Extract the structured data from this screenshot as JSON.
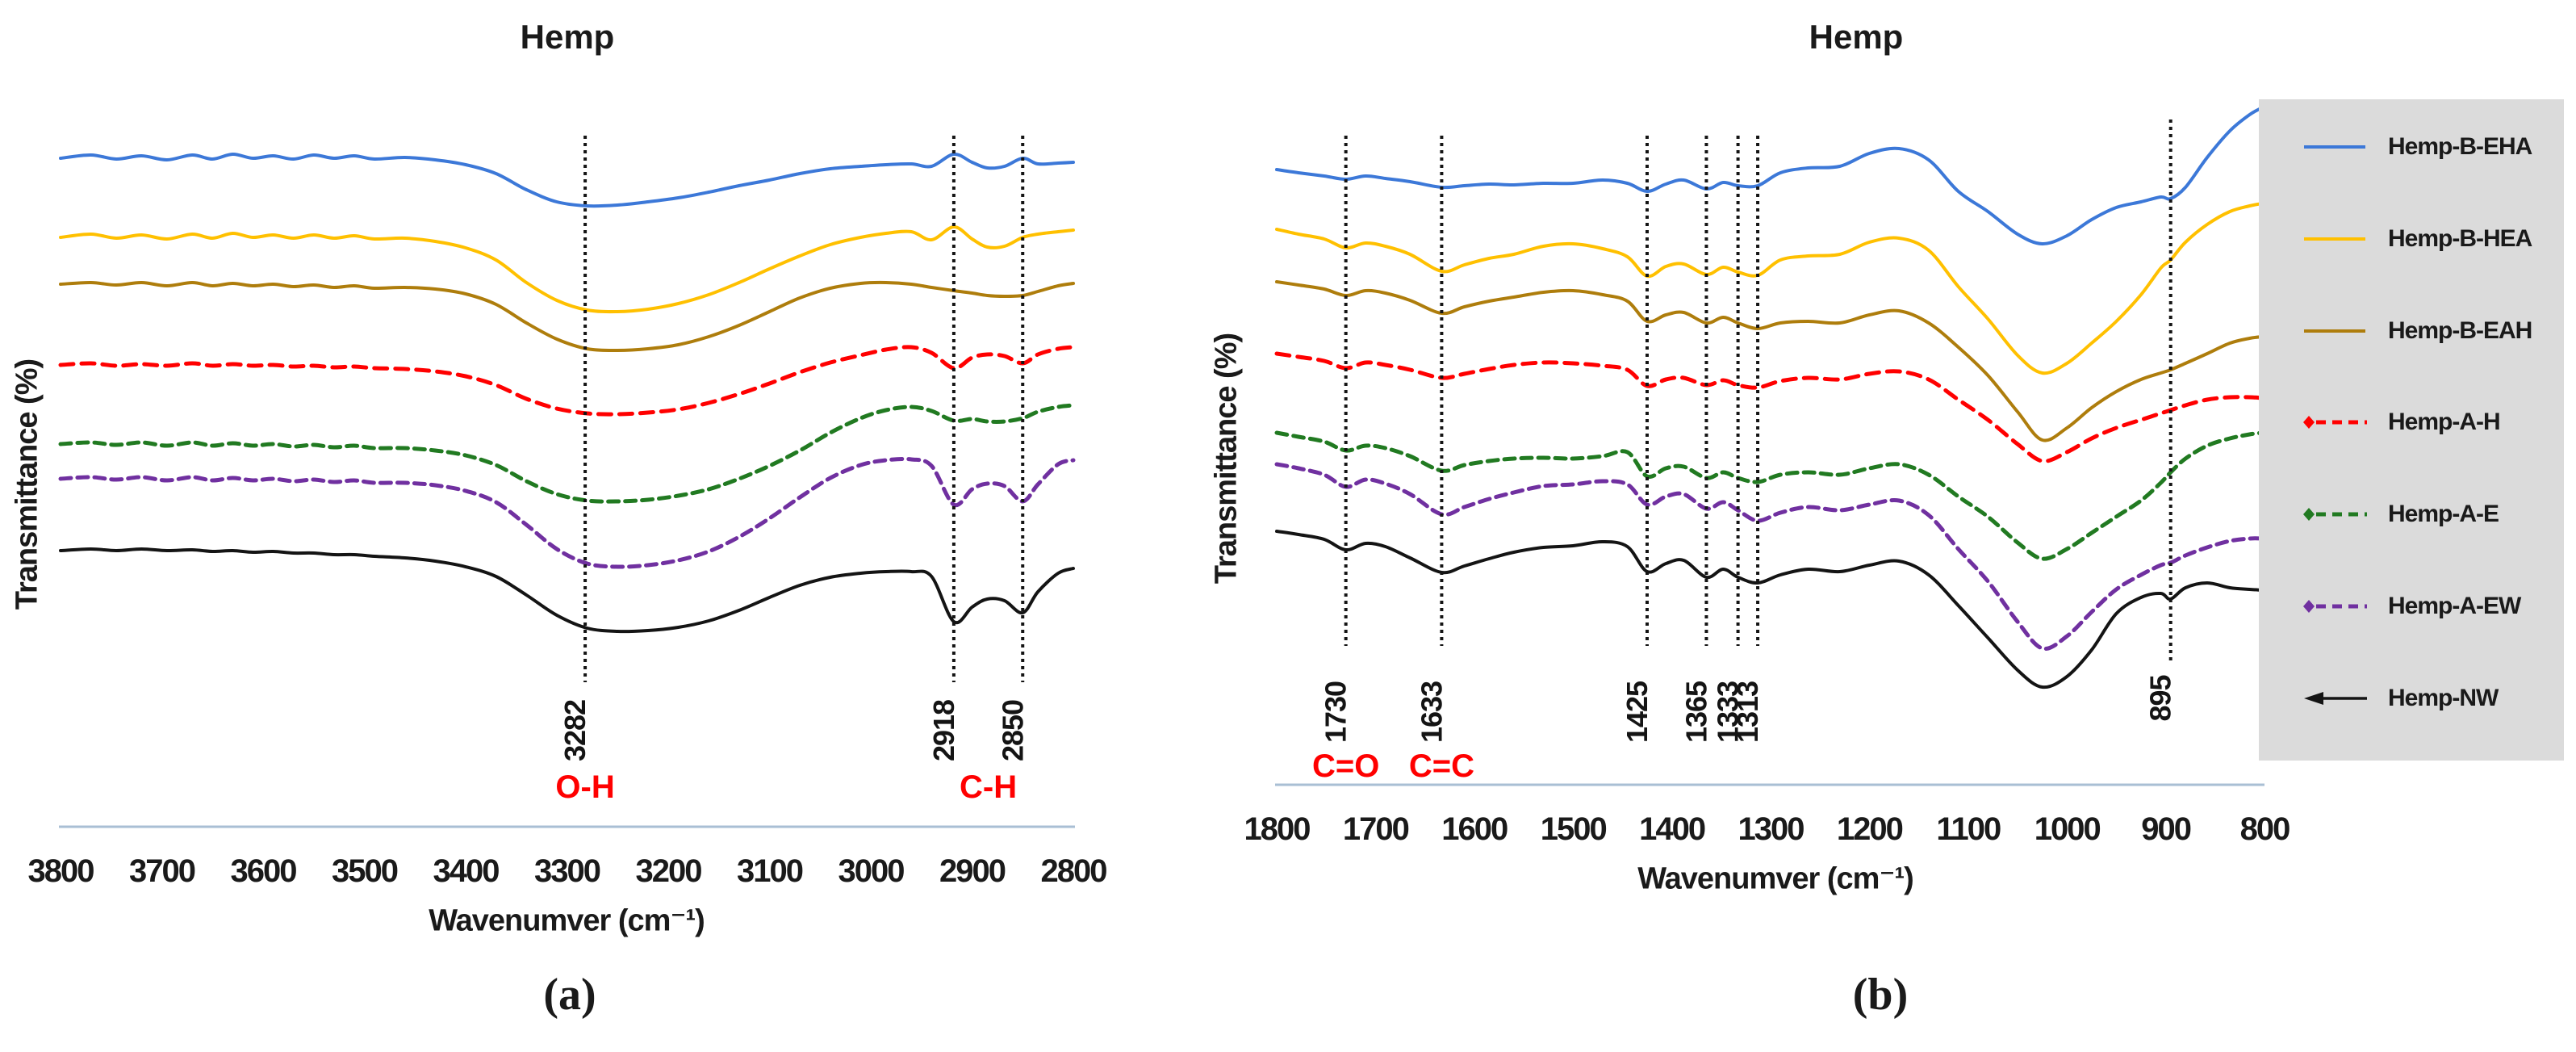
{
  "figure": {
    "panel_letter_a": "(a)",
    "panel_letter_b": "(b)",
    "y_unit_note": "Transmittance in arbitrary offset units; y values are vertical plot units from top"
  },
  "colors": {
    "blue": "#3c78d8",
    "yellow": "#ffc000",
    "dark_yellow": "#ae7d0c",
    "red": "#ff0000",
    "green": "#217a21",
    "purple": "#7030a0",
    "black": "#141414",
    "legend_bg": "#dbdbdb",
    "axis_line": "#a9bfd4",
    "annotation_red": "#ff0000",
    "text": "#1a1a1a"
  },
  "chart_data": [
    {
      "type": "line",
      "title": "Hemp",
      "xlabel": "Wavenumver (cm⁻¹)",
      "ylabel": "Transmittance (%)",
      "x_axis": {
        "min": 2800,
        "max": 3800,
        "reversed": true,
        "ticks": [
          3800,
          3700,
          3600,
          3500,
          3400,
          3300,
          3200,
          3100,
          3000,
          2900,
          2800
        ]
      },
      "grid": false,
      "annotations": {
        "vlines": [
          {
            "x": 3282,
            "label": "3282"
          },
          {
            "x": 2918,
            "label": "2918"
          },
          {
            "x": 2850,
            "label": "2850"
          }
        ],
        "band_labels": [
          {
            "text": "O-H",
            "x": 3282
          },
          {
            "text": "C-H",
            "x": 2884
          }
        ]
      },
      "x": [
        3800,
        3770,
        3745,
        3720,
        3695,
        3670,
        3650,
        3630,
        3610,
        3590,
        3570,
        3550,
        3530,
        3510,
        3490,
        3460,
        3430,
        3400,
        3370,
        3340,
        3310,
        3280,
        3250,
        3220,
        3190,
        3160,
        3130,
        3100,
        3070,
        3040,
        3010,
        2985,
        2960,
        2940,
        2918,
        2900,
        2885,
        2868,
        2850,
        2835,
        2815,
        2800
      ],
      "series": [
        {
          "name": "Hemp-B-EHA",
          "color": "blue",
          "style": "solid",
          "y": [
            196,
            192,
            197,
            193,
            198,
            192,
            197,
            191,
            196,
            193,
            197,
            192,
            196,
            193,
            197,
            195,
            198,
            204,
            215,
            235,
            250,
            255,
            254,
            250,
            245,
            238,
            230,
            223,
            215,
            209,
            206,
            204,
            203,
            206,
            191,
            201,
            208,
            206,
            196,
            203,
            202,
            201
          ]
        },
        {
          "name": "Hemp-B-HEA",
          "color": "yellow",
          "style": "solid",
          "y": [
            294,
            290,
            295,
            291,
            296,
            290,
            295,
            289,
            294,
            291,
            295,
            291,
            295,
            292,
            296,
            295,
            299,
            307,
            322,
            350,
            372,
            384,
            386,
            383,
            376,
            365,
            350,
            333,
            317,
            303,
            294,
            289,
            287,
            297,
            281,
            296,
            306,
            305,
            294,
            290,
            287,
            285
          ]
        },
        {
          "name": "Hemp-B-EAH",
          "color": "dark_yellow",
          "style": "solid",
          "y": [
            352,
            350,
            353,
            350,
            354,
            350,
            354,
            351,
            354,
            352,
            355,
            353,
            356,
            354,
            357,
            356,
            358,
            364,
            377,
            400,
            420,
            432,
            434,
            432,
            427,
            417,
            403,
            386,
            369,
            357,
            351,
            350,
            352,
            356,
            360,
            363,
            366,
            367,
            366,
            361,
            354,
            351
          ]
        },
        {
          "name": "Hemp-A-H",
          "color": "red",
          "style": "dashed",
          "y": [
            452,
            450,
            453,
            451,
            453,
            450,
            453,
            451,
            453,
            452,
            454,
            453,
            455,
            454,
            456,
            457,
            460,
            466,
            477,
            494,
            506,
            512,
            513,
            511,
            507,
            499,
            488,
            475,
            461,
            449,
            440,
            433,
            430,
            437,
            456,
            443,
            439,
            441,
            450,
            439,
            432,
            430
          ]
        },
        {
          "name": "Hemp-A-E",
          "color": "green",
          "style": "dashed",
          "y": [
            550,
            548,
            551,
            548,
            552,
            548,
            552,
            549,
            552,
            550,
            553,
            551,
            554,
            552,
            555,
            555,
            558,
            564,
            576,
            596,
            612,
            620,
            621,
            619,
            614,
            606,
            593,
            577,
            558,
            536,
            518,
            508,
            504,
            509,
            521,
            519,
            522,
            522,
            518,
            510,
            504,
            502
          ]
        },
        {
          "name": "Hemp-A-EW",
          "color": "purple",
          "style": "dashed",
          "y": [
            593,
            591,
            594,
            591,
            595,
            591,
            595,
            592,
            595,
            593,
            596,
            594,
            597,
            595,
            598,
            598,
            601,
            608,
            622,
            650,
            680,
            698,
            702,
            700,
            694,
            683,
            665,
            642,
            616,
            592,
            576,
            570,
            569,
            577,
            625,
            606,
            599,
            602,
            621,
            600,
            575,
            570
          ]
        },
        {
          "name": "Hemp-NW",
          "color": "black",
          "style": "solid",
          "y": [
            682,
            680,
            682,
            680,
            682,
            681,
            683,
            682,
            684,
            683,
            685,
            685,
            687,
            687,
            689,
            691,
            695,
            702,
            714,
            737,
            762,
            778,
            782,
            781,
            777,
            769,
            756,
            740,
            725,
            715,
            710,
            708,
            708,
            714,
            770,
            752,
            742,
            744,
            759,
            733,
            710,
            704
          ]
        }
      ]
    },
    {
      "type": "line",
      "title": "Hemp",
      "xlabel": "Wavenumver (cm⁻¹)",
      "ylabel": "Transmittance (%)",
      "x_axis": {
        "min": 800,
        "max": 1800,
        "reversed": true,
        "ticks": [
          1800,
          1700,
          1600,
          1500,
          1400,
          1300,
          1200,
          1100,
          1000,
          900,
          800
        ]
      },
      "grid": false,
      "annotations": {
        "vlines": [
          {
            "x": 1730,
            "label": "1730"
          },
          {
            "x": 1633,
            "label": "1633"
          },
          {
            "x": 1425,
            "label": "1425"
          },
          {
            "x": 1365,
            "label": "1365"
          },
          {
            "x": 1333,
            "label": "1333"
          },
          {
            "x": 1313,
            "label": "1313"
          },
          {
            "x": 895,
            "label": "895"
          }
        ],
        "band_labels": [
          {
            "text": "C=O",
            "x": 1730
          },
          {
            "text": "C=C",
            "x": 1633
          }
        ]
      },
      "x": [
        1800,
        1778,
        1752,
        1730,
        1710,
        1690,
        1665,
        1633,
        1610,
        1585,
        1560,
        1530,
        1500,
        1470,
        1445,
        1425,
        1406,
        1388,
        1365,
        1348,
        1333,
        1313,
        1290,
        1262,
        1230,
        1200,
        1170,
        1140,
        1110,
        1080,
        1050,
        1025,
        1000,
        975,
        950,
        925,
        905,
        895,
        880,
        858,
        835,
        815,
        802
      ],
      "series": [
        {
          "name": "Hemp-B-EHA",
          "color": "blue",
          "style": "solid",
          "y": [
            210,
            214,
            218,
            222,
            218,
            221,
            225,
            232,
            230,
            228,
            229,
            227,
            227,
            223,
            227,
            237,
            228,
            223,
            234,
            226,
            230,
            230,
            214,
            208,
            206,
            190,
            184,
            198,
            237,
            262,
            290,
            302,
            292,
            272,
            257,
            250,
            244,
            246,
            232,
            195,
            162,
            142,
            133
          ]
        },
        {
          "name": "Hemp-B-HEA",
          "color": "yellow",
          "style": "solid",
          "y": [
            284,
            290,
            296,
            307,
            301,
            305,
            315,
            336,
            328,
            320,
            315,
            305,
            302,
            308,
            318,
            342,
            330,
            327,
            340,
            331,
            337,
            341,
            322,
            317,
            315,
            300,
            295,
            310,
            355,
            395,
            440,
            462,
            450,
            425,
            398,
            365,
            332,
            322,
            300,
            278,
            262,
            255,
            252
          ]
        },
        {
          "name": "Hemp-B-EAH",
          "color": "dark_yellow",
          "style": "solid",
          "y": [
            349,
            353,
            358,
            366,
            360,
            363,
            372,
            388,
            380,
            373,
            368,
            362,
            360,
            365,
            373,
            398,
            390,
            387,
            400,
            393,
            400,
            407,
            400,
            398,
            400,
            390,
            385,
            400,
            430,
            465,
            510,
            545,
            530,
            505,
            485,
            470,
            462,
            458,
            450,
            438,
            425,
            419,
            417
          ]
        },
        {
          "name": "Hemp-A-H",
          "color": "red",
          "style": "dashed",
          "y": [
            438,
            442,
            447,
            456,
            449,
            452,
            458,
            468,
            463,
            457,
            452,
            449,
            450,
            453,
            458,
            478,
            470,
            468,
            477,
            471,
            477,
            480,
            472,
            468,
            470,
            463,
            460,
            470,
            495,
            520,
            550,
            571,
            560,
            543,
            530,
            520,
            512,
            508,
            502,
            495,
            492,
            492,
            493
          ]
        },
        {
          "name": "Hemp-A-E",
          "color": "green",
          "style": "dashed",
          "y": [
            536,
            541,
            547,
            558,
            552,
            555,
            565,
            583,
            576,
            571,
            568,
            567,
            568,
            565,
            560,
            590,
            580,
            578,
            592,
            585,
            592,
            597,
            588,
            585,
            588,
            580,
            575,
            588,
            615,
            640,
            672,
            692,
            680,
            660,
            640,
            620,
            598,
            585,
            568,
            552,
            543,
            538,
            536
          ]
        },
        {
          "name": "Hemp-A-EW",
          "color": "purple",
          "style": "dashed",
          "y": [
            575,
            580,
            588,
            603,
            594,
            599,
            612,
            637,
            628,
            618,
            610,
            602,
            600,
            596,
            600,
            625,
            615,
            612,
            630,
            622,
            632,
            645,
            635,
            628,
            632,
            625,
            620,
            638,
            680,
            720,
            770,
            803,
            788,
            758,
            730,
            712,
            700,
            697,
            688,
            678,
            670,
            667,
            667
          ]
        },
        {
          "name": "Hemp-NW",
          "color": "black",
          "style": "solid",
          "y": [
            658,
            662,
            668,
            681,
            673,
            677,
            691,
            709,
            701,
            692,
            684,
            678,
            676,
            671,
            677,
            708,
            698,
            694,
            715,
            705,
            715,
            722,
            712,
            705,
            708,
            700,
            695,
            712,
            750,
            790,
            830,
            851,
            838,
            805,
            760,
            740,
            735,
            742,
            728,
            722,
            728,
            730,
            731
          ]
        }
      ]
    }
  ],
  "legend": {
    "position": "right",
    "items": [
      {
        "label": "Hemp-B-EHA",
        "color": "blue",
        "style": "solid"
      },
      {
        "label": "Hemp-B-HEA",
        "color": "yellow",
        "style": "solid"
      },
      {
        "label": "Hemp-B-EAH",
        "color": "dark_yellow",
        "style": "solid"
      },
      {
        "label": "Hemp-A-H",
        "color": "red",
        "style": "dash-diamond"
      },
      {
        "label": "Hemp-A-E",
        "color": "green",
        "style": "dash-diamond"
      },
      {
        "label": "Hemp-A-EW",
        "color": "purple",
        "style": "dash-diamond"
      },
      {
        "label": "Hemp-NW",
        "color": "black",
        "style": "arrow"
      }
    ]
  }
}
